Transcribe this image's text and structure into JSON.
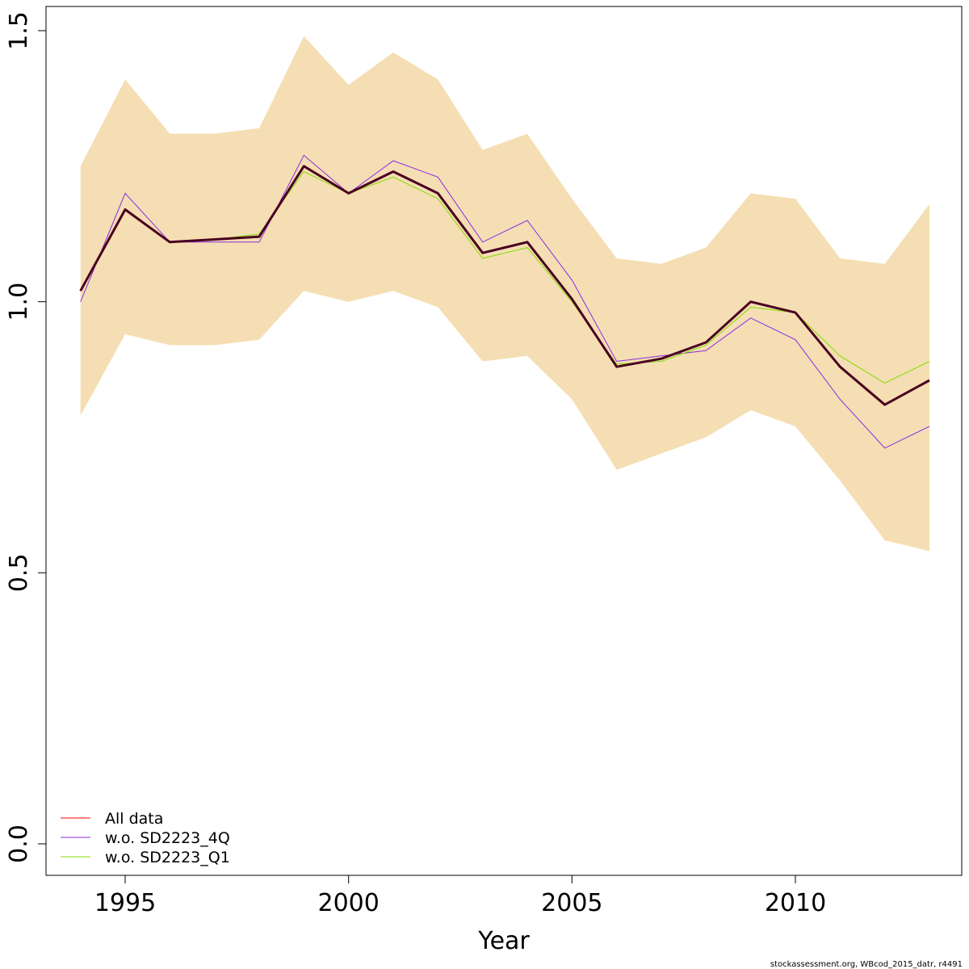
{
  "chart_data": {
    "type": "line",
    "title": "",
    "xlabel": "Year",
    "ylabel": "",
    "xlim": [
      1993.0,
      2013.8
    ],
    "ylim": [
      -0.05,
      1.55
    ],
    "x_ticks": [
      1995,
      2000,
      2005,
      2010
    ],
    "y_ticks": [
      0.0,
      0.5,
      1.0,
      1.5
    ],
    "x_tick_labels": [
      "1995",
      "2000",
      "2005",
      "2010"
    ],
    "y_tick_labels": [
      "0.0",
      "0.5",
      "1.0",
      "1.5"
    ],
    "x": [
      1994,
      1995,
      1996,
      1997,
      1998,
      1999,
      2000,
      2001,
      2002,
      2003,
      2004,
      2005,
      2006,
      2007,
      2008,
      2009,
      2010,
      2011,
      2012,
      2013
    ],
    "band": {
      "color": "#f5deb3",
      "upper": [
        1.25,
        1.41,
        1.31,
        1.31,
        1.32,
        1.49,
        1.4,
        1.46,
        1.41,
        1.28,
        1.31,
        1.19,
        1.08,
        1.07,
        1.1,
        1.2,
        1.19,
        1.08,
        1.07,
        1.18
      ],
      "lower": [
        0.79,
        0.94,
        0.92,
        0.92,
        0.93,
        1.02,
        1.0,
        1.02,
        0.99,
        0.89,
        0.9,
        0.82,
        0.69,
        0.72,
        0.75,
        0.8,
        0.77,
        0.67,
        0.56,
        0.54
      ]
    },
    "estimate_line": {
      "color": "#4a0020",
      "values": [
        1.02,
        1.17,
        1.11,
        1.115,
        1.12,
        1.25,
        1.2,
        1.24,
        1.2,
        1.09,
        1.11,
        1.005,
        0.88,
        0.895,
        0.925,
        1.0,
        0.98,
        0.88,
        0.81,
        0.855
      ]
    },
    "series": [
      {
        "name": "All data",
        "color": "#ff0000",
        "values": [
          1.02,
          1.17,
          1.11,
          1.115,
          1.12,
          1.25,
          1.2,
          1.24,
          1.2,
          1.09,
          1.11,
          1.005,
          0.88,
          0.895,
          0.925,
          1.0,
          0.98,
          0.88,
          0.81,
          0.855
        ]
      },
      {
        "name": "w.o. SD2223_4Q",
        "color": "#8a2be2",
        "values": [
          1.0,
          1.2,
          1.11,
          1.11,
          1.11,
          1.27,
          1.2,
          1.26,
          1.23,
          1.11,
          1.15,
          1.04,
          0.89,
          0.9,
          0.91,
          0.97,
          0.93,
          0.82,
          0.73,
          0.77
        ]
      },
      {
        "name": "w.o. SD2223_Q1",
        "color": "#7fdd00",
        "values": [
          1.02,
          1.17,
          1.11,
          1.115,
          1.125,
          1.24,
          1.2,
          1.23,
          1.19,
          1.08,
          1.1,
          1.0,
          0.885,
          0.89,
          0.92,
          0.99,
          0.98,
          0.9,
          0.85,
          0.89
        ]
      }
    ],
    "legend": {
      "position": "bottom-left",
      "entries": [
        "All data",
        "w.o. SD2223_4Q",
        "w.o. SD2223_Q1"
      ]
    },
    "grid": false
  },
  "footer": {
    "credit": "stockassessment.org, WBcod_2015_datr, r4491"
  }
}
